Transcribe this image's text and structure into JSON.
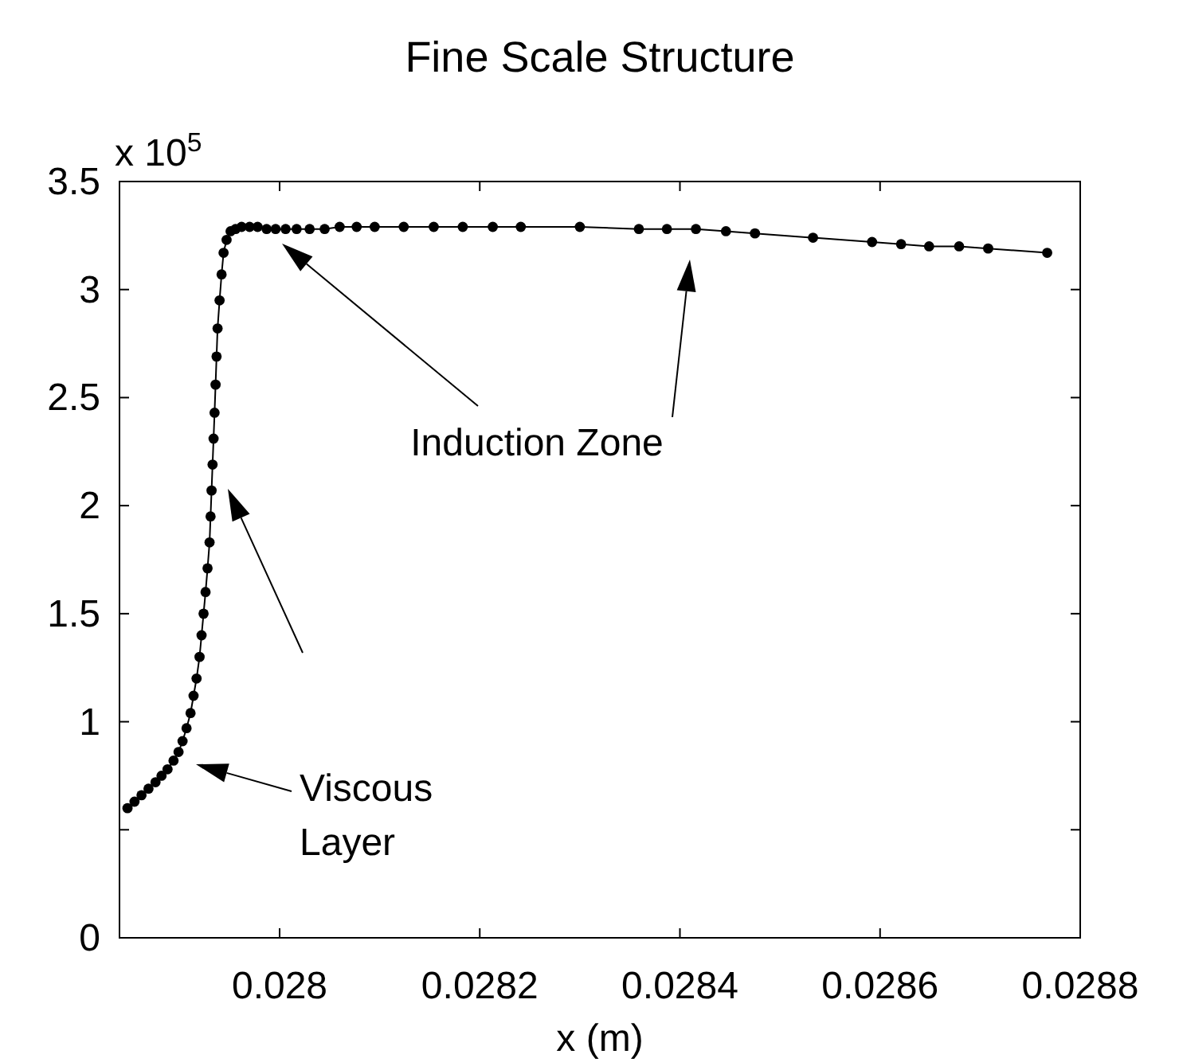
{
  "chart_data": {
    "type": "line",
    "title": "Fine Scale Structure",
    "xlabel": "x (m)",
    "marker": "circle",
    "line_style": "solid",
    "grid": false,
    "xlim": [
      0.02784,
      0.0288
    ],
    "xticks": [
      0.028,
      0.0282,
      0.0284,
      0.0286,
      0.0288
    ],
    "ylim": [
      0,
      3.5
    ],
    "yticks": [
      0,
      {
        "value": 0.5,
        "label": null
      },
      1,
      1.5,
      2,
      2.5,
      3,
      3.5
    ],
    "annotations": [
      "x 10$^{5}$",
      "Induction Zone",
      "Viscous Layer"
    ],
    "series": [
      {
        "color": "#000000",
        "x": [
          0.027848,
          0.027855,
          0.027862,
          0.027869,
          0.027876,
          0.027882,
          0.027888,
          0.027894,
          0.027899,
          0.027903,
          0.027907,
          0.027911,
          0.027914,
          0.027917,
          0.02792,
          0.027922,
          0.027924,
          0.027926,
          0.027928,
          0.02793,
          0.027931,
          0.027932,
          0.027933,
          0.027934,
          0.027935,
          0.027936,
          0.027937,
          0.027938,
          0.02794,
          0.027942,
          0.027944,
          0.027947,
          0.027951,
          0.027956,
          0.027962,
          0.02797,
          0.027978,
          0.027987,
          0.027996,
          0.028006,
          0.028017,
          0.02803,
          0.028045,
          0.02806,
          0.028077,
          0.028095,
          0.028124,
          0.028154,
          0.028183,
          0.028213,
          0.028241,
          0.0283,
          0.028359,
          0.028387,
          0.028416,
          0.028446,
          0.028475,
          0.028533,
          0.028592,
          0.028621,
          0.028649,
          0.028679,
          0.028708,
          0.028767
        ],
        "values": [
          0.6,
          0.63,
          0.66,
          0.69,
          0.72,
          0.75,
          0.78,
          0.82,
          0.86,
          0.91,
          0.97,
          1.04,
          1.12,
          1.2,
          1.3,
          1.4,
          1.5,
          1.6,
          1.71,
          1.83,
          1.95,
          2.07,
          2.19,
          2.31,
          2.43,
          2.56,
          2.69,
          2.82,
          2.95,
          3.07,
          3.17,
          3.23,
          3.27,
          3.28,
          3.29,
          3.29,
          3.29,
          3.28,
          3.28,
          3.28,
          3.28,
          3.28,
          3.28,
          3.29,
          3.29,
          3.29,
          3.29,
          3.29,
          3.29,
          3.29,
          3.29,
          3.29,
          3.28,
          3.28,
          3.28,
          3.27,
          3.26,
          3.24,
          3.22,
          3.21,
          3.2,
          3.2,
          3.19,
          3.17
        ]
      }
    ]
  }
}
